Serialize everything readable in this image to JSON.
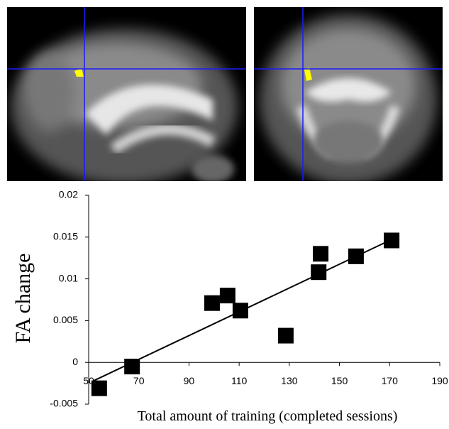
{
  "chart_data": {
    "type": "scatter",
    "x_label": "Total amount of training (completed sessions)",
    "y_label": "FA change",
    "x": [
      54.2,
      67.3,
      99.2,
      105.4,
      110.5,
      128.6,
      141.7,
      142.5,
      156.6,
      170.8
    ],
    "values": [
      -0.0031,
      -0.0005,
      0.0071,
      0.008,
      0.0062,
      0.0032,
      0.0108,
      0.013,
      0.0127,
      0.0146
    ],
    "color": "#000000",
    "fit_line": {
      "x": [
        52,
        170
      ],
      "y": [
        -0.0022,
        0.0146
      ]
    },
    "xlim": [
      50,
      190
    ],
    "xticks": [
      50,
      70,
      90,
      110,
      130,
      150,
      170,
      190
    ],
    "ylim": [
      -0.005,
      0.02
    ],
    "yticks": [
      -0.005,
      0,
      0.005,
      0.01,
      0.015,
      0.02
    ]
  }
}
